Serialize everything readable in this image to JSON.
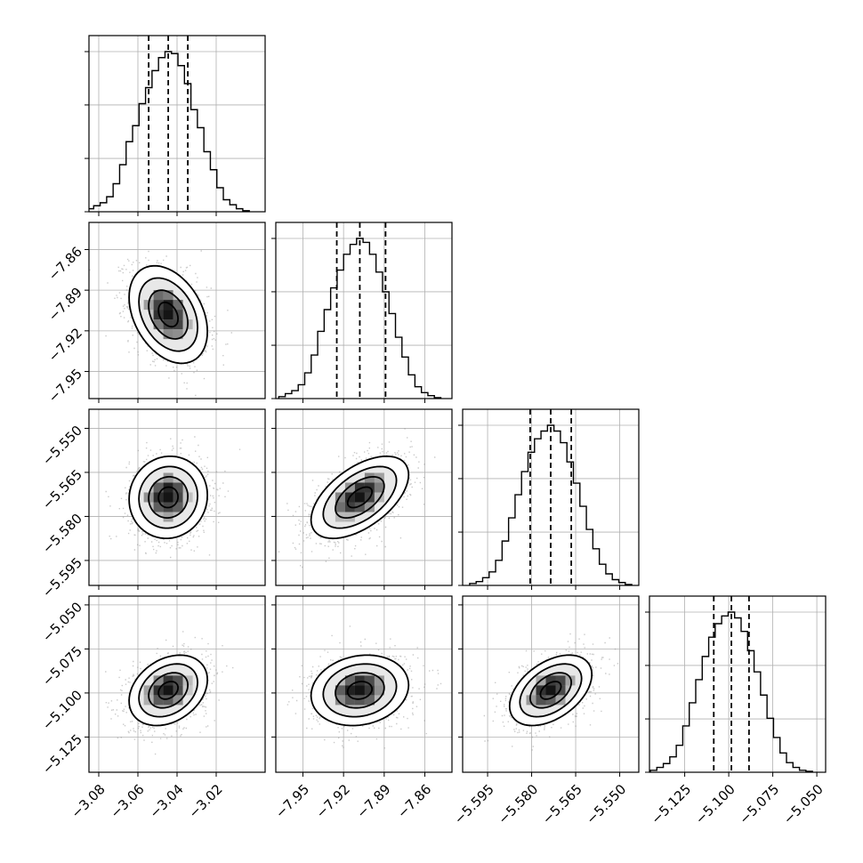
{
  "chart_data": {
    "type": "corner",
    "parameters": [
      {
        "range": [
          -3.085,
          -2.995
        ],
        "ticks": [
          -3.08,
          -3.06,
          -3.04,
          -3.02
        ],
        "tick_labels": [
          "−3.08",
          "−3.06",
          "−3.04",
          "−3.02"
        ],
        "quantiles": [
          -3.0545,
          -3.0445,
          -3.0345
        ],
        "hist_counts": [
          3,
          6,
          9,
          15,
          28,
          47,
          70,
          86,
          108,
          124,
          141,
          154,
          160,
          158,
          146,
          128,
          102,
          84,
          60,
          42,
          24,
          12,
          7,
          3,
          1
        ]
      },
      {
        "range": [
          -7.97,
          -7.84
        ],
        "ticks": [
          -7.95,
          -7.92,
          -7.89,
          -7.86
        ],
        "tick_labels": [
          "−7.95",
          "−7.92",
          "−7.89",
          "−7.86"
        ],
        "quantiles": [
          -7.925,
          -7.908,
          -7.889
        ],
        "hist_counts": [
          2,
          5,
          8,
          14,
          26,
          44,
          68,
          90,
          112,
          130,
          146,
          156,
          162,
          158,
          146,
          128,
          108,
          86,
          62,
          42,
          24,
          12,
          6,
          3,
          1
        ]
      },
      {
        "range": [
          -5.6035,
          -5.5435
        ],
        "ticks": [
          -5.595,
          -5.58,
          -5.565,
          -5.55
        ],
        "tick_labels": [
          "−5.595",
          "−5.580",
          "−5.565",
          "−5.550"
        ],
        "quantiles": [
          -5.5805,
          -5.5735,
          -5.5665
        ],
        "hist_counts": [
          2,
          4,
          8,
          14,
          26,
          46,
          70,
          94,
          118,
          138,
          152,
          160,
          166,
          160,
          148,
          128,
          106,
          82,
          58,
          38,
          22,
          12,
          6,
          3,
          1
        ]
      },
      {
        "range": [
          -5.145,
          -5.045
        ],
        "ticks": [
          -5.125,
          -5.1,
          -5.075,
          -5.05
        ],
        "tick_labels": [
          "−5.125",
          "−5.100",
          "−5.075",
          "−5.050"
        ],
        "quantiles": [
          -5.1085,
          -5.0985,
          -5.0885
        ],
        "hist_counts": [
          2,
          5,
          9,
          16,
          28,
          48,
          72,
          96,
          120,
          140,
          154,
          162,
          166,
          160,
          146,
          126,
          104,
          80,
          56,
          36,
          20,
          10,
          5,
          2,
          1
        ]
      }
    ],
    "pairs": [
      {
        "row": 1,
        "col": 0,
        "correlation": -0.35
      },
      {
        "row": 2,
        "col": 0,
        "correlation": 0.05
      },
      {
        "row": 2,
        "col": 1,
        "correlation": 0.55
      },
      {
        "row": 3,
        "col": 0,
        "correlation": 0.3
      },
      {
        "row": 3,
        "col": 1,
        "correlation": 0.15
      },
      {
        "row": 3,
        "col": 2,
        "correlation": 0.45
      }
    ],
    "contour_levels_sigma": [
      0.5,
      1.0,
      1.5,
      2.0
    ],
    "grid": true
  }
}
